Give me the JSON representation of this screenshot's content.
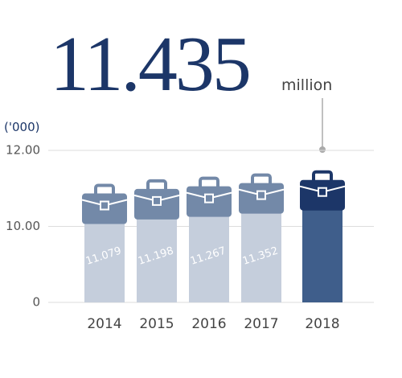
{
  "chart_data": {
    "type": "bar",
    "headline_unit": "million",
    "y_unit": "('000)",
    "categories": [
      "2014",
      "2015",
      "2016",
      "2017",
      "2018"
    ],
    "values": [
      11.079,
      11.198,
      11.267,
      11.352,
      11.435
    ],
    "colors": [
      "#c5cedc",
      "#c5cedc",
      "#c5cedc",
      "#c5cedc",
      "#3f5e8b"
    ],
    "icon_colors": [
      "#7389a8",
      "#7389a8",
      "#7389a8",
      "#7389a8",
      "#1c3668"
    ],
    "ylim": [
      0,
      12
    ],
    "yticks": [
      0,
      {
        "value": 10,
        "label": "10.00"
      },
      {
        "value": 12,
        "label": "12.00"
      }
    ],
    "grid": true
  }
}
